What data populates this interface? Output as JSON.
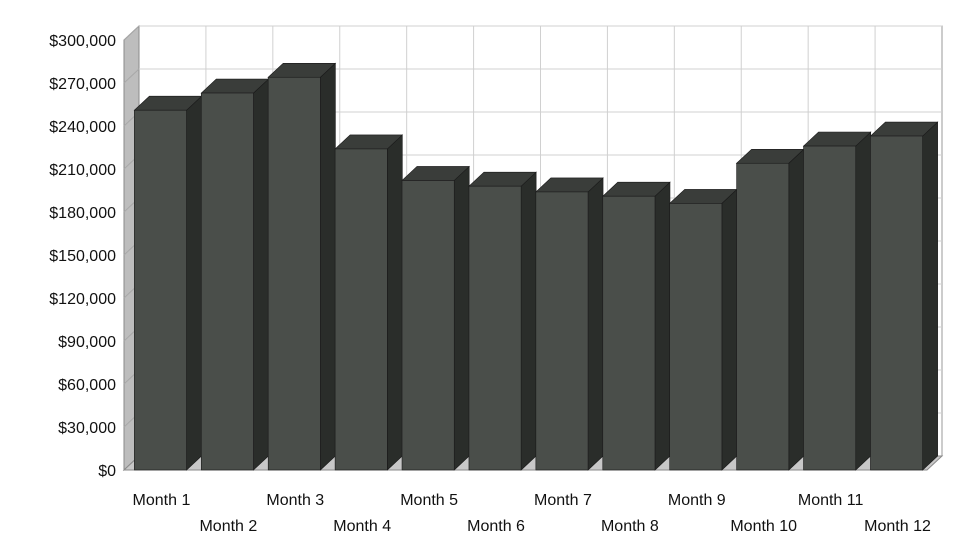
{
  "chart_data": {
    "type": "bar",
    "style": "3d-column",
    "categories": [
      "Month 1",
      "Month 2",
      "Month 3",
      "Month 4",
      "Month 5",
      "Month 6",
      "Month 7",
      "Month 8",
      "Month 9",
      "Month 10",
      "Month 11",
      "Month 12"
    ],
    "values": [
      251000,
      263000,
      274000,
      224000,
      202000,
      198000,
      194000,
      191000,
      186000,
      214000,
      226000,
      233000
    ],
    "ylim": [
      0,
      300000
    ],
    "yticks": [
      0,
      30000,
      60000,
      90000,
      120000,
      150000,
      180000,
      210000,
      240000,
      270000,
      300000
    ],
    "ytick_labels": [
      "$0",
      "$30,000",
      "$60,000",
      "$90,000",
      "$120,000",
      "$150,000",
      "$180,000",
      "$210,000",
      "$240,000",
      "$270,000",
      "$300,000"
    ],
    "title": "",
    "xlabel": "",
    "ylabel": "",
    "grid": true,
    "legend": "none",
    "colors": {
      "bar_front": "#4a4e4a",
      "bar_side": "#2a2d2a",
      "bar_top": "#3a3d3a",
      "wall": "#ffffff",
      "side_wall": "#bdbdbd",
      "floor": "#c8c8c8",
      "grid": "#d0d0d0"
    }
  }
}
